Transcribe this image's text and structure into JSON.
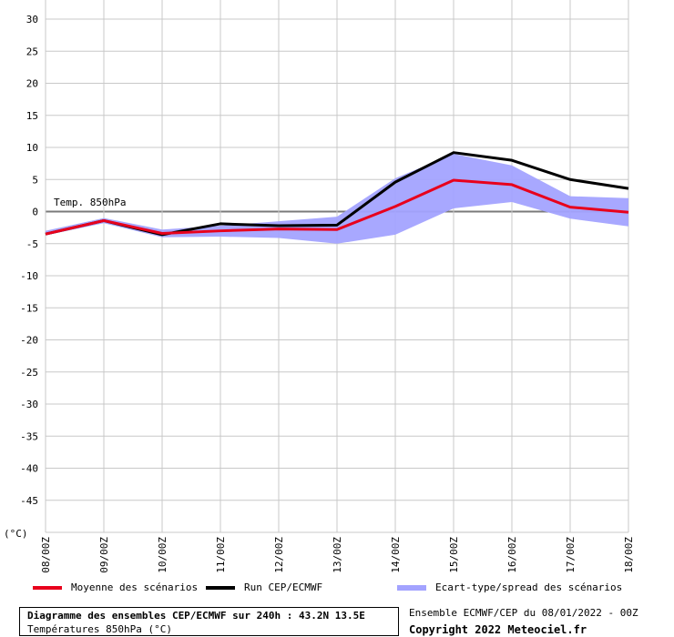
{
  "chart_data": {
    "type": "line",
    "ylim": [
      -50,
      30
    ],
    "yticks": [
      30,
      25,
      20,
      15,
      10,
      5,
      0,
      -5,
      -10,
      -15,
      -20,
      -25,
      -30,
      -35,
      -40,
      -45
    ],
    "y_unit_label": "(°C)",
    "categories": [
      "08/00Z",
      "09/00Z",
      "10/00Z",
      "11/00Z",
      "12/00Z",
      "13/00Z",
      "14/00Z",
      "15/00Z",
      "16/00Z",
      "17/00Z",
      "18/00Z"
    ],
    "annotation": "Temp. 850hPa",
    "grid": true,
    "series": [
      {
        "name": "Moyenne des scénarios",
        "color": "#e8001c",
        "x": [
          0,
          1,
          2,
          3,
          4,
          5,
          6,
          7,
          8,
          9,
          10
        ],
        "values": [
          -3.5,
          -1.4,
          -3.4,
          -3.0,
          -2.7,
          -2.8,
          0.8,
          4.9,
          4.2,
          0.7,
          -0.1
        ]
      },
      {
        "name": "Run CEP/ECMWF",
        "color": "#000000",
        "x": [
          0,
          1,
          2,
          3,
          4,
          5,
          6,
          7,
          8,
          9,
          10
        ],
        "values": [
          -3.5,
          -1.4,
          -3.6,
          -1.9,
          -2.2,
          -2.1,
          4.6,
          9.2,
          8.0,
          5.0,
          3.6
        ]
      },
      {
        "name": "Ecart-type/spread des scénarios",
        "type": "area",
        "color": "#a3a3ff",
        "x": [
          0,
          1,
          2,
          3,
          4,
          5,
          6,
          7,
          8,
          9,
          10
        ],
        "upper": [
          -3.0,
          -1.0,
          -2.8,
          -2.2,
          -1.5,
          -0.8,
          5.2,
          9.0,
          7.2,
          2.4,
          2.1
        ],
        "lower": [
          -3.7,
          -1.8,
          -4.0,
          -3.9,
          -4.1,
          -5.0,
          -3.6,
          0.5,
          1.5,
          -1.1,
          -2.3
        ]
      }
    ]
  },
  "legend": {
    "mean_label": "Moyenne des scénarios",
    "run_label": "Run CEP/ECMWF",
    "spread_label": "Ecart-type/spread des scénarios"
  },
  "footer": {
    "title": "Diagramme des ensembles CEP/ECMWF sur 240h : 43.2N 13.5E",
    "subtitle": "Températures 850hPa (°C)",
    "run_info": "Ensemble ECMWF/CEP du 08/01/2022 - 00Z",
    "copyright": "Copyright 2022 Meteociel.fr"
  }
}
